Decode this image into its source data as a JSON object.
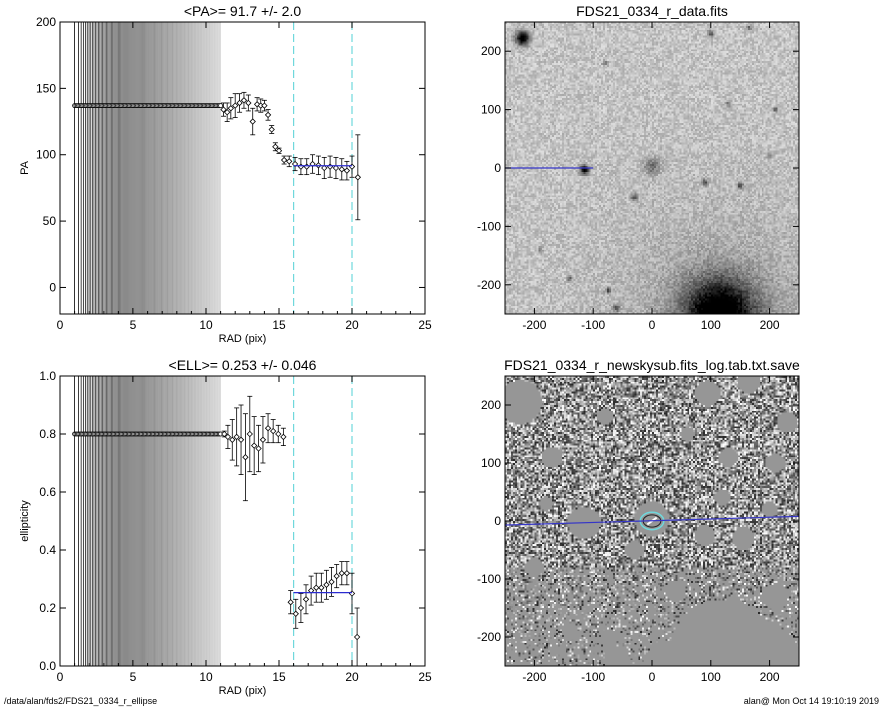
{
  "footer": {
    "left": "/data/alan/fds2/FDS21_0334_r_ellipse",
    "right": "alan@  Mon Oct 14 19:10:19 2019"
  },
  "chart_data": [
    {
      "type": "scatter",
      "title": "<PA>=  91.7 +/-   2.0",
      "xlabel": "RAD (pix)",
      "ylabel": "PA",
      "xlim": [
        0,
        25
      ],
      "ylim": [
        -20,
        200
      ],
      "xticks": [
        "0",
        "5",
        "10",
        "15",
        "20",
        "25"
      ],
      "yticks": [
        "0",
        "50",
        "100",
        "150",
        "200"
      ],
      "xtick_values": [
        0,
        5,
        10,
        15,
        20,
        25
      ],
      "ytick_values": [
        0,
        50,
        100,
        150,
        200
      ],
      "dense_region": {
        "x0": 1.0,
        "x1": 11.0,
        "y": 137
      },
      "fit_range": [
        16,
        20
      ],
      "fit_value": 91.7,
      "points": [
        {
          "x": 11.2,
          "y": 134,
          "e": 5
        },
        {
          "x": 11.45,
          "y": 132,
          "e": 7
        },
        {
          "x": 11.7,
          "y": 135,
          "e": 8
        },
        {
          "x": 12.0,
          "y": 137,
          "e": 9
        },
        {
          "x": 12.3,
          "y": 139,
          "e": 7
        },
        {
          "x": 12.6,
          "y": 141,
          "e": 6
        },
        {
          "x": 12.9,
          "y": 139,
          "e": 6
        },
        {
          "x": 13.2,
          "y": 125,
          "e": 10
        },
        {
          "x": 13.5,
          "y": 138,
          "e": 5
        },
        {
          "x": 13.75,
          "y": 137,
          "e": 5
        },
        {
          "x": 14.0,
          "y": 137,
          "e": 4
        },
        {
          "x": 14.25,
          "y": 130,
          "e": 4
        },
        {
          "x": 14.5,
          "y": 119,
          "e": 3
        },
        {
          "x": 14.75,
          "y": 106,
          "e": 3
        },
        {
          "x": 15.0,
          "y": 103,
          "e": 2
        },
        {
          "x": 15.35,
          "y": 96,
          "e": 3
        },
        {
          "x": 15.7,
          "y": 95,
          "e": 4
        },
        {
          "x": 16.1,
          "y": 93,
          "e": 5
        },
        {
          "x": 16.5,
          "y": 91,
          "e": 6
        },
        {
          "x": 16.9,
          "y": 91,
          "e": 6
        },
        {
          "x": 17.3,
          "y": 93,
          "e": 7
        },
        {
          "x": 17.7,
          "y": 92,
          "e": 7
        },
        {
          "x": 18.1,
          "y": 90,
          "e": 8
        },
        {
          "x": 18.5,
          "y": 91,
          "e": 8
        },
        {
          "x": 18.9,
          "y": 90,
          "e": 8
        },
        {
          "x": 19.3,
          "y": 89,
          "e": 8
        },
        {
          "x": 19.65,
          "y": 88,
          "e": 7
        },
        {
          "x": 20.0,
          "y": 91,
          "e": 8
        },
        {
          "x": 20.4,
          "y": 83,
          "e": 32
        }
      ]
    },
    {
      "type": "scatter",
      "title": "<ELL>= 0.253 +/-  0.046",
      "xlabel": "RAD (pix)",
      "ylabel": "ellipticity",
      "xlim": [
        0,
        25
      ],
      "ylim": [
        0,
        1
      ],
      "xticks": [
        "0",
        "5",
        "10",
        "15",
        "20",
        "25"
      ],
      "yticks": [
        "0.0",
        "0.2",
        "0.4",
        "0.6",
        "0.8",
        "1.0"
      ],
      "xtick_values": [
        0,
        5,
        10,
        15,
        20,
        25
      ],
      "ytick_values": [
        0,
        0.2,
        0.4,
        0.6,
        0.8,
        1.0
      ],
      "dense_region": {
        "x0": 1.0,
        "x1": 11.0,
        "y": 0.8
      },
      "fit_range": [
        16,
        20
      ],
      "fit_value": 0.253,
      "points": [
        {
          "x": 11.25,
          "y": 0.8,
          "e": 0.01
        },
        {
          "x": 11.5,
          "y": 0.79,
          "e": 0.04
        },
        {
          "x": 11.8,
          "y": 0.78,
          "e": 0.07
        },
        {
          "x": 12.1,
          "y": 0.79,
          "e": 0.1
        },
        {
          "x": 12.4,
          "y": 0.78,
          "e": 0.12
        },
        {
          "x": 12.7,
          "y": 0.72,
          "e": 0.15
        },
        {
          "x": 13.0,
          "y": 0.8,
          "e": 0.13
        },
        {
          "x": 13.3,
          "y": 0.76,
          "e": 0.1
        },
        {
          "x": 13.6,
          "y": 0.75,
          "e": 0.08
        },
        {
          "x": 13.9,
          "y": 0.78,
          "e": 0.08
        },
        {
          "x": 14.25,
          "y": 0.82,
          "e": 0.05
        },
        {
          "x": 14.6,
          "y": 0.81,
          "e": 0.04
        },
        {
          "x": 14.95,
          "y": 0.8,
          "e": 0.03
        },
        {
          "x": 15.3,
          "y": 0.79,
          "e": 0.03
        },
        {
          "x": 15.8,
          "y": 0.22,
          "e": 0.04
        },
        {
          "x": 16.15,
          "y": 0.18,
          "e": 0.05
        },
        {
          "x": 16.5,
          "y": 0.2,
          "e": 0.05
        },
        {
          "x": 16.85,
          "y": 0.23,
          "e": 0.05
        },
        {
          "x": 17.2,
          "y": 0.26,
          "e": 0.05
        },
        {
          "x": 17.55,
          "y": 0.27,
          "e": 0.05
        },
        {
          "x": 17.9,
          "y": 0.27,
          "e": 0.05
        },
        {
          "x": 18.25,
          "y": 0.28,
          "e": 0.05
        },
        {
          "x": 18.6,
          "y": 0.29,
          "e": 0.05
        },
        {
          "x": 18.95,
          "y": 0.31,
          "e": 0.04
        },
        {
          "x": 19.3,
          "y": 0.32,
          "e": 0.04
        },
        {
          "x": 19.65,
          "y": 0.32,
          "e": 0.04
        },
        {
          "x": 20.0,
          "y": 0.25,
          "e": 0.07
        },
        {
          "x": 20.35,
          "y": 0.1,
          "e": 0.1
        }
      ]
    },
    {
      "type": "heatmap",
      "title": "FDS21_0334_r_data.fits",
      "xlim": [
        -250,
        250
      ],
      "ylim": [
        -250,
        250
      ],
      "xticks": [
        "-200",
        "-100",
        "0",
        "100",
        "200"
      ],
      "yticks": [
        "-200",
        "-100",
        "0",
        "100",
        "200"
      ],
      "xtick_values": [
        -200,
        -100,
        0,
        100,
        200
      ],
      "ytick_values": [
        -200,
        -100,
        0,
        100,
        200
      ],
      "sources": [
        {
          "x": -220,
          "y": 222,
          "r": 14,
          "s": 1.0
        },
        {
          "x": -115,
          "y": -3,
          "r": 9,
          "s": 0.9
        },
        {
          "x": 0,
          "y": 3,
          "r": 16,
          "s": 0.35
        },
        {
          "x": 115,
          "y": -250,
          "r": 70,
          "s": 0.9
        },
        {
          "x": -30,
          "y": -50,
          "r": 7,
          "s": 0.5
        },
        {
          "x": 90,
          "y": -25,
          "r": 6,
          "s": 0.55
        },
        {
          "x": 150,
          "y": -30,
          "r": 6,
          "s": 0.5
        },
        {
          "x": 130,
          "y": 110,
          "r": 6,
          "s": 0.4
        },
        {
          "x": 210,
          "y": 100,
          "r": 5,
          "s": 0.45
        },
        {
          "x": -60,
          "y": -240,
          "r": 6,
          "s": 0.6
        },
        {
          "x": -140,
          "y": -190,
          "r": 5,
          "s": 0.5
        },
        {
          "x": -75,
          "y": -210,
          "r": 5,
          "s": 0.5
        },
        {
          "x": 100,
          "y": 230,
          "r": 7,
          "s": 0.45
        },
        {
          "x": 165,
          "y": 240,
          "r": 6,
          "s": 0.4
        },
        {
          "x": -80,
          "y": 180,
          "r": 5,
          "s": 0.4
        },
        {
          "x": 200,
          "y": 20,
          "r": 5,
          "s": 0.4
        },
        {
          "x": -190,
          "y": -140,
          "r": 5,
          "s": 0.35
        }
      ],
      "line": {
        "x0": -250,
        "y0": 0,
        "x1": -100,
        "y1": 0
      }
    },
    {
      "type": "heatmap",
      "title": "FDS21_0334_r_newskysub.fits_log.tab.txt.save",
      "xlim": [
        -250,
        250
      ],
      "ylim": [
        -250,
        250
      ],
      "xticks": [
        "-200",
        "-100",
        "0",
        "100",
        "200"
      ],
      "yticks": [
        "-200",
        "-100",
        "0",
        "100",
        "200"
      ],
      "xtick_values": [
        -200,
        -100,
        0,
        100,
        200
      ],
      "ytick_values": [
        -200,
        -100,
        0,
        100,
        200
      ],
      "masks": [
        {
          "x": -225,
          "y": 205,
          "r": 38
        },
        {
          "x": -115,
          "y": -3,
          "r": 28
        },
        {
          "x": 0,
          "y": 3,
          "r": 30
        },
        {
          "x": 120,
          "y": -225,
          "r": 90
        },
        {
          "x": 175,
          "y": -250,
          "r": 80
        },
        {
          "x": 30,
          "y": -250,
          "r": 45
        },
        {
          "x": 95,
          "y": 220,
          "r": 22
        },
        {
          "x": 165,
          "y": 240,
          "r": 20
        },
        {
          "x": 130,
          "y": 110,
          "r": 16
        },
        {
          "x": 210,
          "y": 100,
          "r": 16
        },
        {
          "x": -30,
          "y": -50,
          "r": 16
        },
        {
          "x": 90,
          "y": -25,
          "r": 18
        },
        {
          "x": 155,
          "y": -30,
          "r": 20
        },
        {
          "x": -60,
          "y": -235,
          "r": 20
        },
        {
          "x": -140,
          "y": -190,
          "r": 14
        },
        {
          "x": -75,
          "y": -205,
          "r": 14
        },
        {
          "x": 200,
          "y": 20,
          "r": 14
        },
        {
          "x": 230,
          "y": 170,
          "r": 18
        },
        {
          "x": -170,
          "y": 110,
          "r": 18
        },
        {
          "x": -80,
          "y": 180,
          "r": 14
        },
        {
          "x": 60,
          "y": 150,
          "r": 12
        },
        {
          "x": -200,
          "y": -80,
          "r": 16
        },
        {
          "x": 40,
          "y": -120,
          "r": 18
        },
        {
          "x": 210,
          "y": -130,
          "r": 22
        },
        {
          "x": -180,
          "y": 30,
          "r": 12
        },
        {
          "x": 120,
          "y": 40,
          "r": 14
        }
      ],
      "ellipse": {
        "x": 0,
        "y": 0,
        "a": 20,
        "b": 15,
        "pa": 91.7
      },
      "line": {
        "x0": -250,
        "y0": -7,
        "x1": 250,
        "y1": 8
      }
    }
  ]
}
